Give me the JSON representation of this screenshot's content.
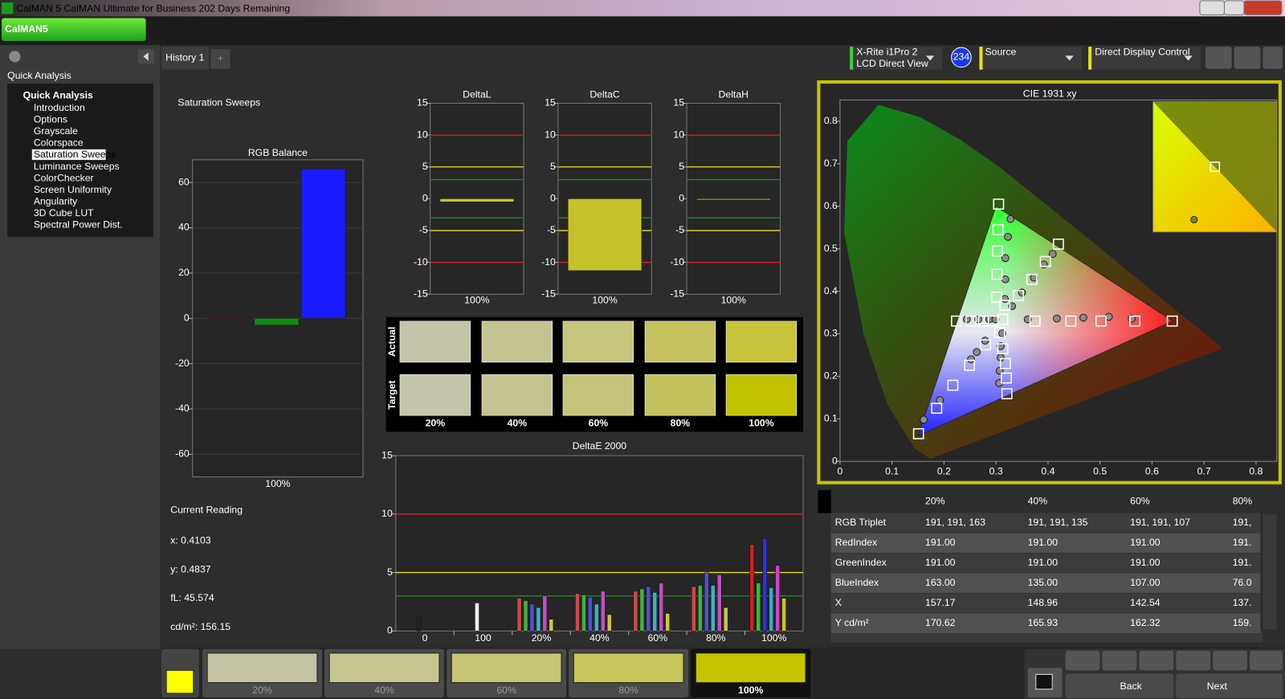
{
  "window": {
    "title": "CalMAN 5 CalMAN Ultimate for Business 202 Days Remaining",
    "logo": "CalMAN5"
  },
  "sidebar": {
    "header": "Quick Analysis",
    "tree_root": "Quick Analysis",
    "items": [
      "Introduction",
      "Options",
      "Grayscale",
      "Colorspace",
      "Saturation Sweeps",
      "Luminance Sweeps",
      "ColorChecker",
      "Screen Uniformity",
      "Angularity",
      "3D Cube LUT",
      "Spectral Power Dist."
    ],
    "selected": 4
  },
  "tabs": {
    "items": [
      "History 1"
    ],
    "add": "+"
  },
  "devices": {
    "meter": "X-Rite i1Pro 2",
    "meter_mode": "LCD Direct View",
    "badge": "234",
    "source": "Source",
    "display": "Direct Display Control"
  },
  "page_title": "Saturation Sweeps",
  "rgb_balance": {
    "type": "bar",
    "title": "RGB Balance",
    "categories": [
      "100%"
    ],
    "series": [
      {
        "color": "#a01818",
        "values": [
          0.3
        ]
      },
      {
        "color": "#148a14",
        "values": [
          -3
        ]
      },
      {
        "color": "#1a1aff",
        "values": [
          66
        ]
      }
    ],
    "ylim": [
      -70,
      70
    ],
    "yticks": [
      60,
      40,
      20,
      0,
      -20,
      -40,
      -60
    ],
    "grid": true
  },
  "delta_charts": {
    "type": "bar",
    "ylim": [
      -15,
      15
    ],
    "yticks": [
      15,
      10,
      5,
      0,
      -5,
      -10,
      -15
    ],
    "color": "#c4c228",
    "ref_lines": [
      {
        "value": 10,
        "color": "#d82020"
      },
      {
        "value": -10,
        "color": "#d82020"
      },
      {
        "value": 5,
        "color": "#e8e020"
      },
      {
        "value": -5,
        "color": "#e8e020"
      },
      {
        "value": 3,
        "color": "#1e8a1e"
      },
      {
        "value": -3,
        "color": "#1e8a1e"
      }
    ],
    "charts": [
      {
        "title": "DeltaL",
        "categories": [
          "100%"
        ],
        "values": [
          -0.5
        ]
      },
      {
        "title": "DeltaC",
        "categories": [
          "100%"
        ],
        "values": [
          -11.3
        ]
      },
      {
        "title": "DeltaH",
        "categories": [
          "100%"
        ],
        "values": [
          -0.2
        ]
      }
    ]
  },
  "swatches": {
    "row_labels": [
      "Actual",
      "Target"
    ],
    "labels": [
      "20%",
      "40%",
      "60%",
      "80%",
      "100%"
    ],
    "actual_colors": [
      "#c3c3a8",
      "#c4c492",
      "#c5c57b",
      "#c4c25e",
      "#c6c53c"
    ],
    "target_colors": [
      "#c4c4aa",
      "#c4c491",
      "#c3c37a",
      "#c2c25c",
      "#c1c100"
    ]
  },
  "deltae": {
    "type": "bar",
    "title": "DeltaE 2000",
    "categories": [
      "0",
      "100",
      "20%",
      "40%",
      "60%",
      "80%",
      "100%"
    ],
    "values": [
      [
        1.3
      ],
      [
        2.4
      ],
      [
        2.8,
        2.6,
        2.3,
        2.0,
        3.0,
        1.0
      ],
      [
        3.2,
        3.1,
        2.9,
        2.3,
        3.4,
        1.4
      ],
      [
        3.4,
        3.6,
        3.8,
        3.3,
        4.1,
        1.5
      ],
      [
        3.8,
        3.9,
        5.0,
        3.9,
        4.8,
        2.0
      ],
      [
        7.4,
        4.1,
        7.9,
        3.7,
        5.6,
        2.8
      ]
    ],
    "colors": [
      [
        "#222222"
      ],
      [
        "#f0f0f0"
      ],
      [
        "#d04848",
        "#40b040",
        "#5050d0",
        "#40b0c0",
        "#c050c0",
        "#c8c840"
      ],
      [
        "#d04848",
        "#40b040",
        "#5050d0",
        "#40b0c0",
        "#c050c0",
        "#c8c840"
      ],
      [
        "#d04848",
        "#40b040",
        "#5050d0",
        "#40b0c0",
        "#c050c0",
        "#c8c840"
      ],
      [
        "#d04848",
        "#40b040",
        "#5050d0",
        "#40b0c0",
        "#c050c0",
        "#c8c840"
      ],
      [
        "#d02020",
        "#30c030",
        "#3030e0",
        "#30b0c0",
        "#d040d0",
        "#d0c020"
      ]
    ],
    "ylim": [
      0,
      15
    ],
    "yticks": [
      0,
      5,
      10,
      15
    ],
    "ref_lines": [
      {
        "value": 10,
        "color": "#d82020"
      },
      {
        "value": 5,
        "color": "#e8e020"
      },
      {
        "value": 3,
        "color": "#1e8a1e"
      }
    ]
  },
  "cie": {
    "type": "scatter",
    "title": "CIE 1931 xy",
    "xlim": [
      0,
      0.84
    ],
    "ylim": [
      0,
      0.85
    ],
    "xticks": [
      0,
      0.1,
      0.2,
      0.3,
      0.4,
      0.5,
      0.6,
      0.7,
      0.8
    ],
    "yticks": [
      0,
      0.1,
      0.2,
      0.3,
      0.4,
      0.5,
      0.6,
      0.7,
      0.8
    ],
    "gamut": {
      "x": [
        0.64,
        0.3,
        0.15
      ],
      "y": [
        0.33,
        0.6,
        0.06
      ]
    },
    "targets": {
      "x": [
        0.375,
        0.444,
        0.502,
        0.567,
        0.639,
        0.305,
        0.304,
        0.303,
        0.302,
        0.301,
        0.151,
        0.186,
        0.217,
        0.249,
        0.28,
        0.224,
        0.252,
        0.276,
        0.295,
        0.321,
        0.32,
        0.318,
        0.313,
        0.307,
        0.42,
        0.395,
        0.369,
        0.343,
        0.317,
        0.313
      ],
      "y": [
        0.33,
        0.33,
        0.33,
        0.33,
        0.33,
        0.605,
        0.545,
        0.495,
        0.44,
        0.386,
        0.065,
        0.125,
        0.179,
        0.226,
        0.274,
        0.33,
        0.33,
        0.33,
        0.33,
        0.159,
        0.196,
        0.23,
        0.265,
        0.303,
        0.511,
        0.47,
        0.428,
        0.39,
        0.367,
        0.334
      ]
    },
    "measured": {
      "x": [
        0.361,
        0.417,
        0.468,
        0.517,
        0.561,
        0.328,
        0.323,
        0.318,
        0.318,
        0.317,
        0.161,
        0.192,
        0.252,
        0.263,
        0.279,
        0.244,
        0.266,
        0.287,
        0.299,
        0.306,
        0.307,
        0.309,
        0.309,
        0.312,
        0.409,
        0.392,
        0.373,
        0.35,
        0.331
      ],
      "y": [
        0.334,
        0.336,
        0.338,
        0.34,
        0.336,
        0.57,
        0.528,
        0.478,
        0.428,
        0.382,
        0.098,
        0.144,
        0.24,
        0.257,
        0.284,
        0.334,
        0.334,
        0.334,
        0.334,
        0.184,
        0.213,
        0.244,
        0.271,
        0.301,
        0.488,
        0.463,
        0.432,
        0.397,
        0.365
      ]
    },
    "measured_color": "#8c8c8c"
  },
  "current_reading": {
    "title": "Current Reading",
    "lines": [
      "x: 0.4103",
      "y: 0.4837",
      "fL: 45.574",
      "cd/m²: 156.15"
    ]
  },
  "table": {
    "header": [
      "20%",
      "40%",
      "60%",
      "80%"
    ],
    "rows": [
      [
        "RGB Triplet",
        "191, 191, 163",
        "191, 191, 135",
        "191, 191, 107",
        "191,"
      ],
      [
        "RedIndex",
        "191.00",
        "191.00",
        "191.00",
        "191."
      ],
      [
        "GreenIndex",
        "191.00",
        "191.00",
        "191.00",
        "191."
      ],
      [
        "BlueIndex",
        "163.00",
        "135.00",
        "107.00",
        "76.0"
      ],
      [
        "X",
        "157.17",
        "148.96",
        "142.54",
        "137."
      ],
      [
        "Y cd/m²",
        "170.62",
        "165.93",
        "162.32",
        "159."
      ]
    ]
  },
  "bottom": {
    "labels": [
      "20%",
      "40%",
      "60%",
      "80%",
      "100%"
    ],
    "colors": [
      "#c4c4a4",
      "#c5c58f",
      "#c5c574",
      "#c6c65a",
      "#c5c500"
    ],
    "selected": 4,
    "current_color": "#ffff00",
    "back": "Back",
    "next": "Next"
  }
}
